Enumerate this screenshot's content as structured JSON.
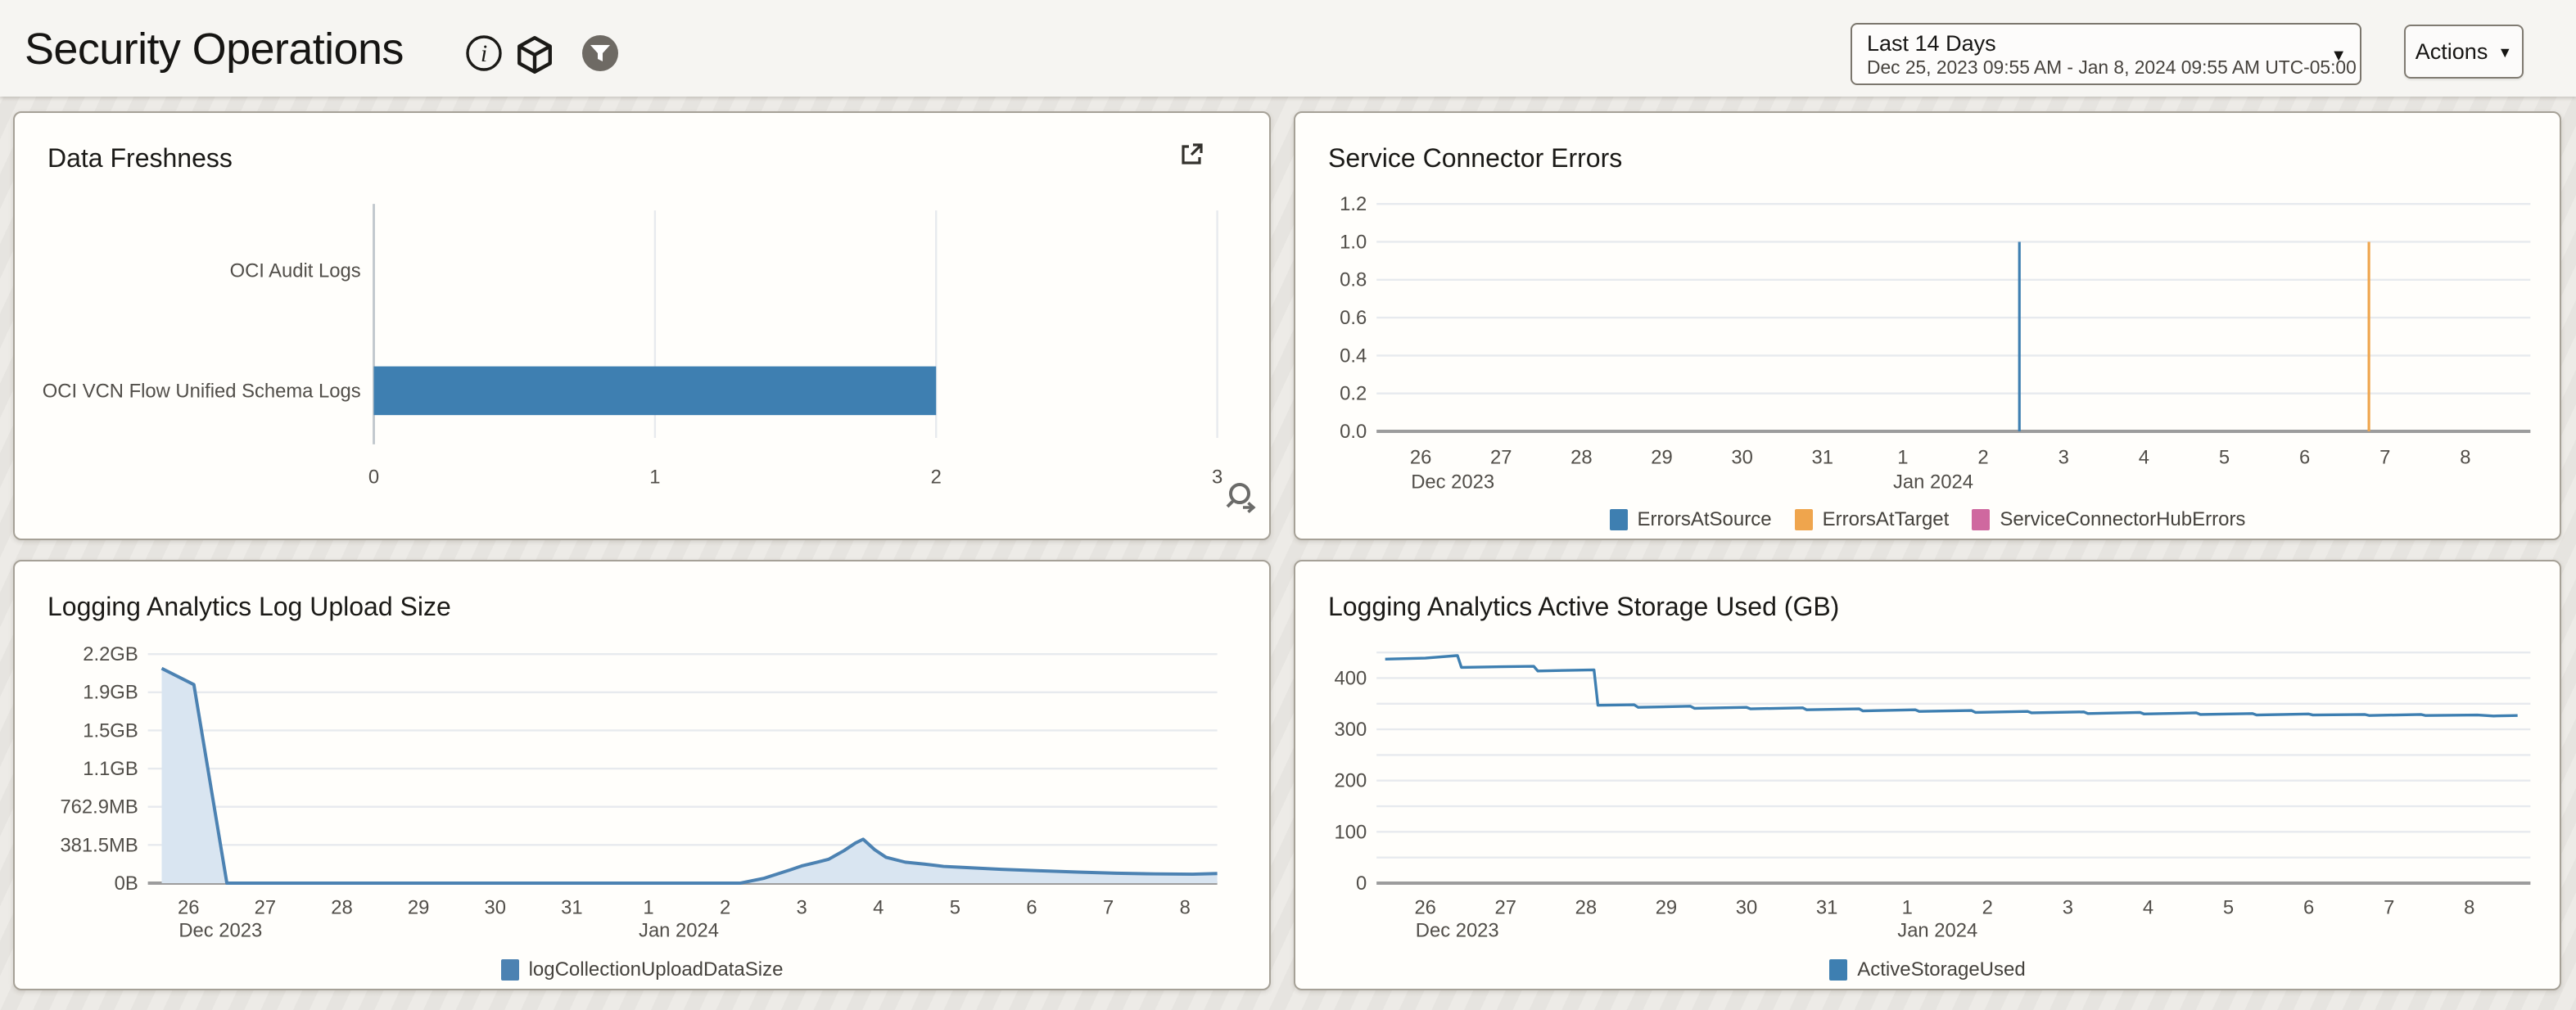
{
  "header": {
    "title": "Security Operations",
    "info_icon": "info-circle",
    "package_icon": "cube-outline",
    "filter_icon": "funnel-in-gray-circle",
    "time_range": {
      "label": "Last 14 Days",
      "detail": "Dec 25, 2023 09:55 AM - Jan 8, 2024 09:55 AM UTC-05:00"
    },
    "actions_label": "Actions"
  },
  "colors": {
    "blue": "#3e7fb1",
    "orange": "#efa54d",
    "pink": "#cf689f",
    "area_fill": "#d9e5f1",
    "area_line": "#4c82b2",
    "grid": "#e7eaee",
    "zero_axis": "#9c9c9c",
    "bar_axis": "#c3c9ce"
  },
  "chart_data": [
    {
      "id": "data-freshness",
      "type": "barh",
      "title": "Data Freshness",
      "categories": [
        "OCI Audit Logs",
        "OCI VCN Flow Unified Schema Logs"
      ],
      "values": [
        0,
        2
      ],
      "xticks": [
        {
          "v": 0,
          "label": "0"
        },
        {
          "v": 1,
          "label": "1"
        },
        {
          "v": 2,
          "label": "2"
        },
        {
          "v": 3,
          "label": "3"
        }
      ],
      "xlim": [
        0,
        3
      ],
      "bar_color": "#3e7fb1",
      "tools": [
        "external-link-icon",
        "drill-magnifier-icon"
      ]
    },
    {
      "id": "service-connector-errors",
      "type": "spikes",
      "title": "Service Connector Errors",
      "ylim": [
        0,
        1.2
      ],
      "yticks": [
        {
          "v": 1.2,
          "label": "1.2"
        },
        {
          "v": 1.0,
          "label": "1.0"
        },
        {
          "v": 0.8,
          "label": "0.8"
        },
        {
          "v": 0.6,
          "label": "0.6"
        },
        {
          "v": 0.4,
          "label": "0.4"
        },
        {
          "v": 0.2,
          "label": "0.2"
        },
        {
          "v": 0.0,
          "label": "0.0"
        }
      ],
      "xticks": [
        "26",
        "27",
        "28",
        "29",
        "30",
        "31",
        "1",
        "2",
        "3",
        "4",
        "5",
        "6",
        "7",
        "8"
      ],
      "month_labels": [
        {
          "text": "Dec 2023",
          "tick": 0
        },
        {
          "text": "Jan 2024",
          "tick": 6
        }
      ],
      "series": [
        {
          "name": "ErrorsAtSource",
          "color": "#3e7fb1",
          "points": [
            [
              7.45,
              1.0
            ]
          ]
        },
        {
          "name": "ErrorsAtTarget",
          "color": "#efa54d",
          "points": [
            [
              11.8,
              1.0
            ]
          ]
        },
        {
          "name": "ServiceConnectorHubErrors",
          "color": "#cf689f",
          "points": []
        }
      ],
      "legend_position": "bottom-center"
    },
    {
      "id": "log-upload-size",
      "type": "area",
      "title": "Logging Analytics Log Upload Size",
      "ylim": [
        0,
        2.4
      ],
      "yticks": [
        {
          "v": 2.4,
          "label": "2.2GB"
        },
        {
          "v": 2.0,
          "label": "1.9GB"
        },
        {
          "v": 1.6,
          "label": "1.5GB"
        },
        {
          "v": 1.2,
          "label": "1.1GB"
        },
        {
          "v": 0.8,
          "label": "762.9MB"
        },
        {
          "v": 0.4,
          "label": "381.5MB"
        },
        {
          "v": 0.0,
          "label": "0B"
        }
      ],
      "xticks": [
        "26",
        "27",
        "28",
        "29",
        "30",
        "31",
        "1",
        "2",
        "3",
        "4",
        "5",
        "6",
        "7",
        "8"
      ],
      "month_labels": [
        {
          "text": "Dec 2023",
          "tick": 0
        },
        {
          "text": "Jan 2024",
          "tick": 6
        }
      ],
      "series": [
        {
          "name": "logCollectionUploadDataSize",
          "color": "#4c82b2",
          "fill": "#d9e5f1",
          "points": [
            [
              -0.35,
              2.25
            ],
            [
              0.07,
              2.08
            ],
            [
              0.5,
              0
            ],
            [
              7.2,
              0
            ],
            [
              7.5,
              0.05
            ],
            [
              7.7,
              0.1
            ],
            [
              7.85,
              0.14
            ],
            [
              8.0,
              0.18
            ],
            [
              8.2,
              0.22
            ],
            [
              8.35,
              0.25
            ],
            [
              8.55,
              0.34
            ],
            [
              8.7,
              0.42
            ],
            [
              8.8,
              0.46
            ],
            [
              8.95,
              0.35
            ],
            [
              9.1,
              0.27
            ],
            [
              9.35,
              0.22
            ],
            [
              9.6,
              0.2
            ],
            [
              9.85,
              0.175
            ],
            [
              10.1,
              0.165
            ],
            [
              10.6,
              0.145
            ],
            [
              11.1,
              0.13
            ],
            [
              11.6,
              0.115
            ],
            [
              12.1,
              0.103
            ],
            [
              12.6,
              0.097
            ],
            [
              13.1,
              0.094
            ],
            [
              13.42,
              0.1
            ]
          ]
        }
      ],
      "legend_position": "bottom-center"
    },
    {
      "id": "active-storage",
      "type": "line",
      "title": "Logging Analytics Active Storage Used (GB)",
      "ylim": [
        0,
        450
      ],
      "yticks": [
        {
          "v": 450,
          "label": ""
        },
        {
          "v": 400,
          "label": "400"
        },
        {
          "v": 350,
          "label": ""
        },
        {
          "v": 300,
          "label": "300"
        },
        {
          "v": 250,
          "label": ""
        },
        {
          "v": 200,
          "label": "200"
        },
        {
          "v": 150,
          "label": ""
        },
        {
          "v": 100,
          "label": "100"
        },
        {
          "v": 50,
          "label": ""
        },
        {
          "v": 0,
          "label": "0"
        }
      ],
      "xticks": [
        "26",
        "27",
        "28",
        "29",
        "30",
        "31",
        "1",
        "2",
        "3",
        "4",
        "5",
        "6",
        "7",
        "8"
      ],
      "month_labels": [
        {
          "text": "Dec 2023",
          "tick": 0
        },
        {
          "text": "Jan 2024",
          "tick": 6
        }
      ],
      "series": [
        {
          "name": "ActiveStorageUsed",
          "color": "#3e7fb1",
          "points": [
            [
              -0.5,
              437
            ],
            [
              0,
              439
            ],
            [
              0.4,
              444
            ],
            [
              0.45,
              421
            ],
            [
              0.95,
              422
            ],
            [
              1.35,
              423
            ],
            [
              1.4,
              414
            ],
            [
              2.1,
              416
            ],
            [
              2.15,
              347
            ],
            [
              2.6,
              348
            ],
            [
              2.65,
              343
            ],
            [
              3.3,
              345
            ],
            [
              3.35,
              341
            ],
            [
              4.0,
              343
            ],
            [
              4.05,
              340
            ],
            [
              4.7,
              342
            ],
            [
              4.75,
              338
            ],
            [
              5.4,
              340
            ],
            [
              5.45,
              336
            ],
            [
              6.1,
              338
            ],
            [
              6.15,
              335
            ],
            [
              6.8,
              337
            ],
            [
              6.85,
              333
            ],
            [
              7.5,
              335
            ],
            [
              7.55,
              332
            ],
            [
              8.2,
              334
            ],
            [
              8.25,
              331
            ],
            [
              8.9,
              333
            ],
            [
              8.95,
              330
            ],
            [
              9.6,
              332
            ],
            [
              9.65,
              329
            ],
            [
              10.3,
              331
            ],
            [
              10.35,
              328
            ],
            [
              11.0,
              330
            ],
            [
              11.05,
              328
            ],
            [
              11.7,
              329
            ],
            [
              11.75,
              327
            ],
            [
              12.4,
              329
            ],
            [
              12.45,
              327
            ],
            [
              13.1,
              328
            ],
            [
              13.3,
              326
            ],
            [
              13.6,
              327
            ]
          ]
        }
      ],
      "legend_position": "bottom-center"
    }
  ]
}
